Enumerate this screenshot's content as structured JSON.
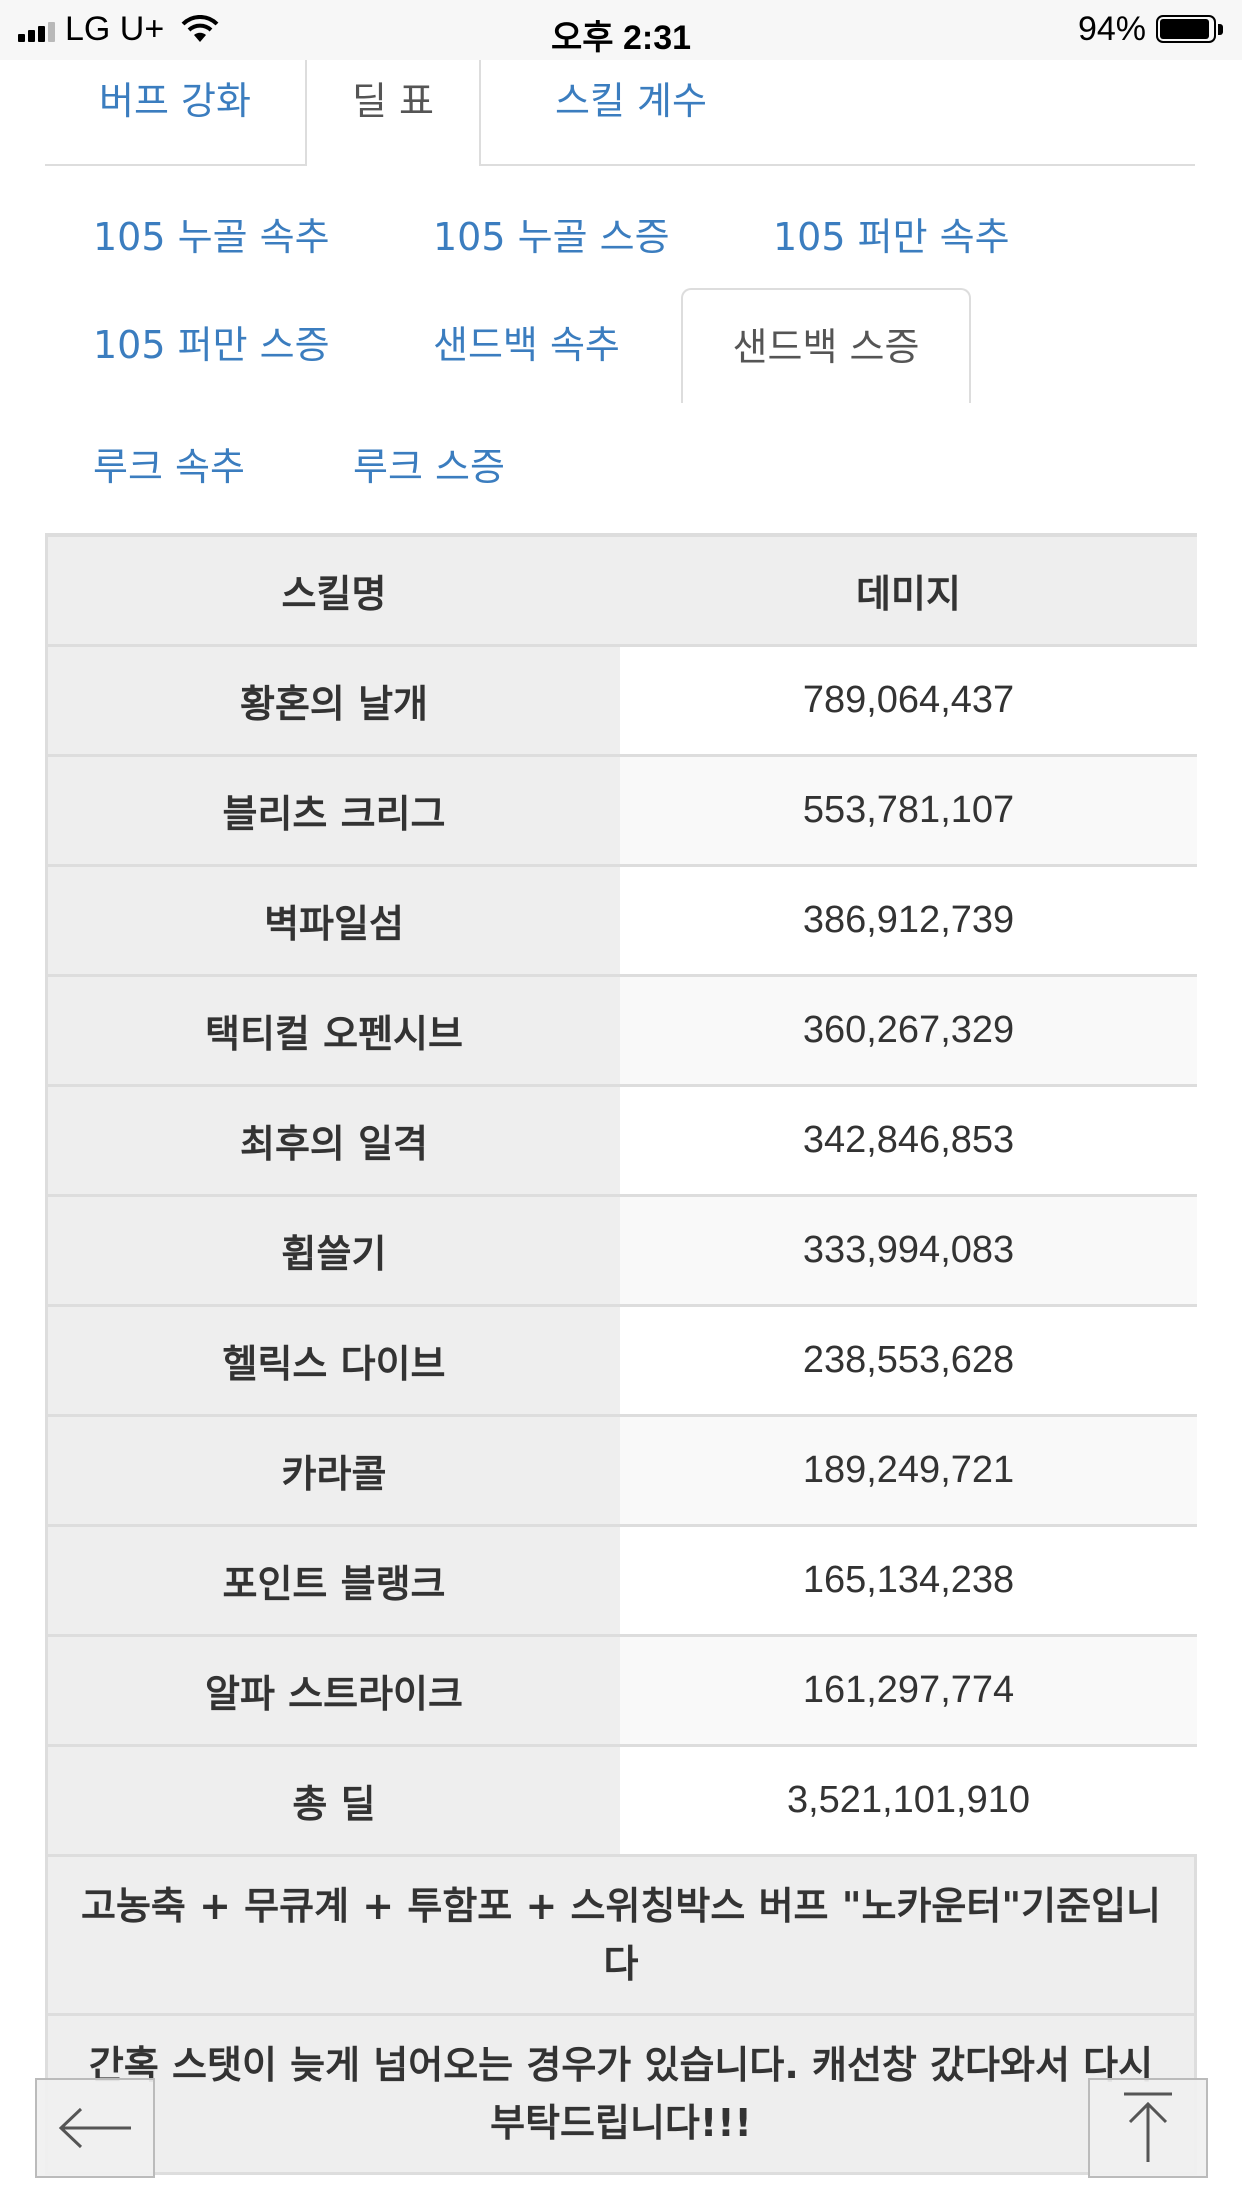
{
  "status_bar": {
    "carrier": "LG U+",
    "time": "오후 2:31",
    "battery_text": "94%",
    "battery_level": 0.94
  },
  "main_tabs": [
    {
      "label": "버프 강화",
      "active": false
    },
    {
      "label": "딜 표",
      "active": true
    },
    {
      "label": "스킬 계수",
      "active": false
    }
  ],
  "sub_tabs": [
    {
      "label": "105 누골 속추",
      "active": false
    },
    {
      "label": "105 누골 스증",
      "active": false
    },
    {
      "label": "105 퍼만 속추",
      "active": false
    },
    {
      "label": "105 퍼만 스증",
      "active": false
    },
    {
      "label": "샌드백 속추",
      "active": false
    },
    {
      "label": "샌드백 스증",
      "active": true
    },
    {
      "label": "루크 속추",
      "active": false
    },
    {
      "label": "루크 스증",
      "active": false
    }
  ],
  "table": {
    "headers": [
      "스킬명",
      "데미지"
    ],
    "rows": [
      {
        "skill": "황혼의 날개",
        "damage": "789,064,437"
      },
      {
        "skill": "블리츠 크리그",
        "damage": "553,781,107"
      },
      {
        "skill": "벽파일섬",
        "damage": "386,912,739"
      },
      {
        "skill": "택티컬 오펜시브",
        "damage": "360,267,329"
      },
      {
        "skill": "최후의 일격",
        "damage": "342,846,853"
      },
      {
        "skill": "휩쓸기",
        "damage": "333,994,083"
      },
      {
        "skill": "헬릭스 다이브",
        "damage": "238,553,628"
      },
      {
        "skill": "카라콜",
        "damage": "189,249,721"
      },
      {
        "skill": "포인트 블랭크",
        "damage": "165,134,238"
      },
      {
        "skill": "알파 스트라이크",
        "damage": "161,297,774"
      },
      {
        "skill": "총 딜",
        "damage": "3,521,101,910"
      }
    ],
    "notes": [
      "고농축 + 무큐계 + 투함포 + 스위칭박스 버프 \"노카운터\"기준입니다",
      "간혹 스탯이 늦게 넘어오는 경우가 있습니다. 캐선창 갔다와서 다시 부탁드립니다!!!"
    ]
  },
  "floating_buttons": {
    "back_icon": "arrow-left-icon",
    "top_icon": "arrow-up-to-top-icon"
  }
}
